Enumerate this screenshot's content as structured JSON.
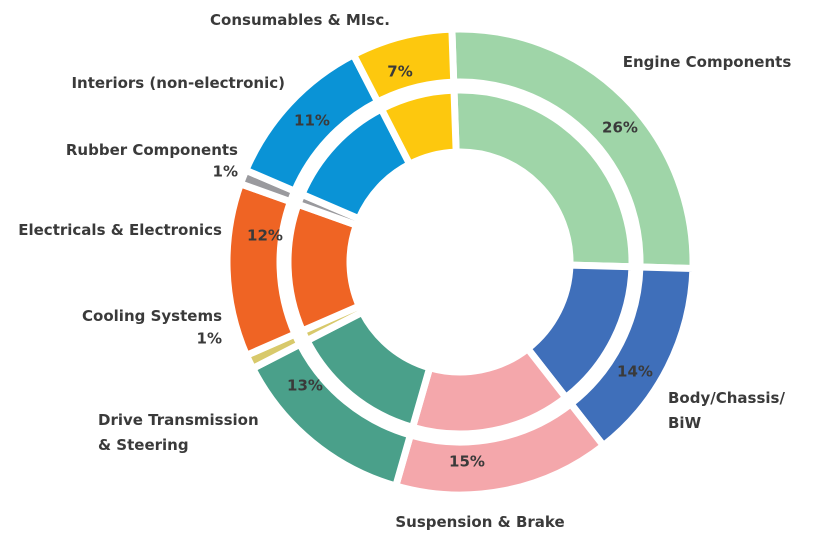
{
  "chart_data": {
    "type": "donut",
    "categories": [
      "Engine Components",
      "Body/Chassis/\nBiW",
      "Suspension & Brake",
      "Drive Transmission\n& Steering",
      "Cooling Systems",
      "Electricals & Electronics",
      "Rubber Components",
      "Interiors (non-electronic)",
      "Consumables & MIsc."
    ],
    "values": [
      26,
      14,
      15,
      13,
      1,
      12,
      1,
      11,
      7
    ],
    "value_labels": [
      "26%",
      "14%",
      "15%",
      "13%",
      "1%",
      "12%",
      "1%",
      "11%",
      "7%"
    ],
    "colors": [
      "#9fd5a8",
      "#3f6fba",
      "#f4a7ab",
      "#4aa08a",
      "#d8c96b",
      "#ef6424",
      "#9a9a9e",
      "#0a93d6",
      "#fdc80e"
    ]
  }
}
